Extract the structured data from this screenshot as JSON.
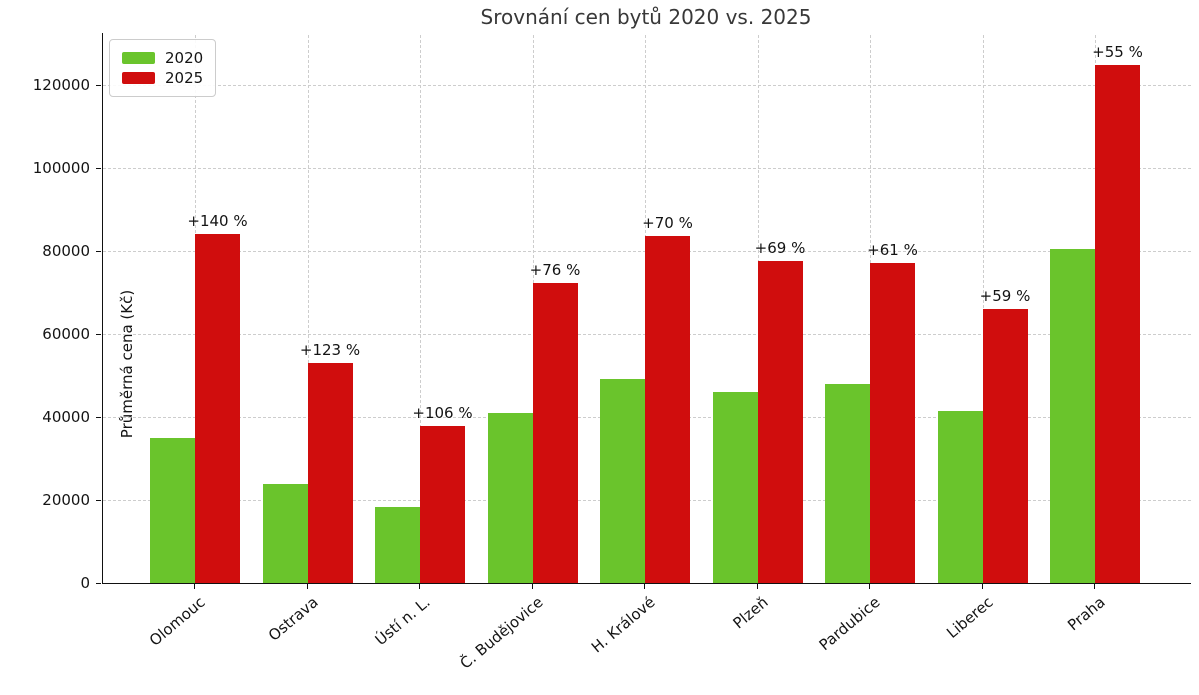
{
  "window": {
    "background": "#ffffff"
  },
  "chart_data": {
    "type": "bar",
    "title": "Srovnání cen bytů 2020 vs. 2025",
    "xlabel": "",
    "ylabel": "Průměrná cena (Kč)",
    "categories": [
      "Olomouc",
      "Ostrava",
      "Ústí n. L.",
      "Č. Budějovice",
      "H. Králové",
      "Plzeň",
      "Pardubice",
      "Liberec",
      "Praha"
    ],
    "series": [
      {
        "name": "2020",
        "color": "#6ac42c",
        "values": [
          35000,
          23800,
          18400,
          41000,
          49100,
          45900,
          47900,
          41500,
          80500
        ]
      },
      {
        "name": "2025",
        "color": "#d00d0d",
        "values": [
          84000,
          53100,
          37900,
          72200,
          83500,
          77600,
          77100,
          66000,
          124800
        ]
      }
    ],
    "annotations": [
      "+140 %",
      "+123 %",
      "+106 %",
      "+76 %",
      "+70 %",
      "+69 %",
      "+61 %",
      "+59 %",
      "+55 %"
    ],
    "annotation_note": "percent increase shown above each 2025 bar",
    "yticks": [
      0,
      20000,
      40000,
      60000,
      80000,
      100000,
      120000
    ],
    "ytick_labels": [
      "0",
      "20000",
      "40000",
      "60000",
      "80000",
      "100000",
      "120000"
    ],
    "ylim": [
      0,
      132500
    ],
    "grid": "dashed, both axes, light gray, behind bars",
    "legend_position": "upper left",
    "x_label_rotation_deg": 40
  },
  "colors": {
    "bar_2020": "#6ac42c",
    "bar_2025": "#d00d0d",
    "grid": "#cdcdcd",
    "text": "#141414",
    "title_text": "#383838",
    "spine": "#111111",
    "legend_border": "#cccccc"
  }
}
